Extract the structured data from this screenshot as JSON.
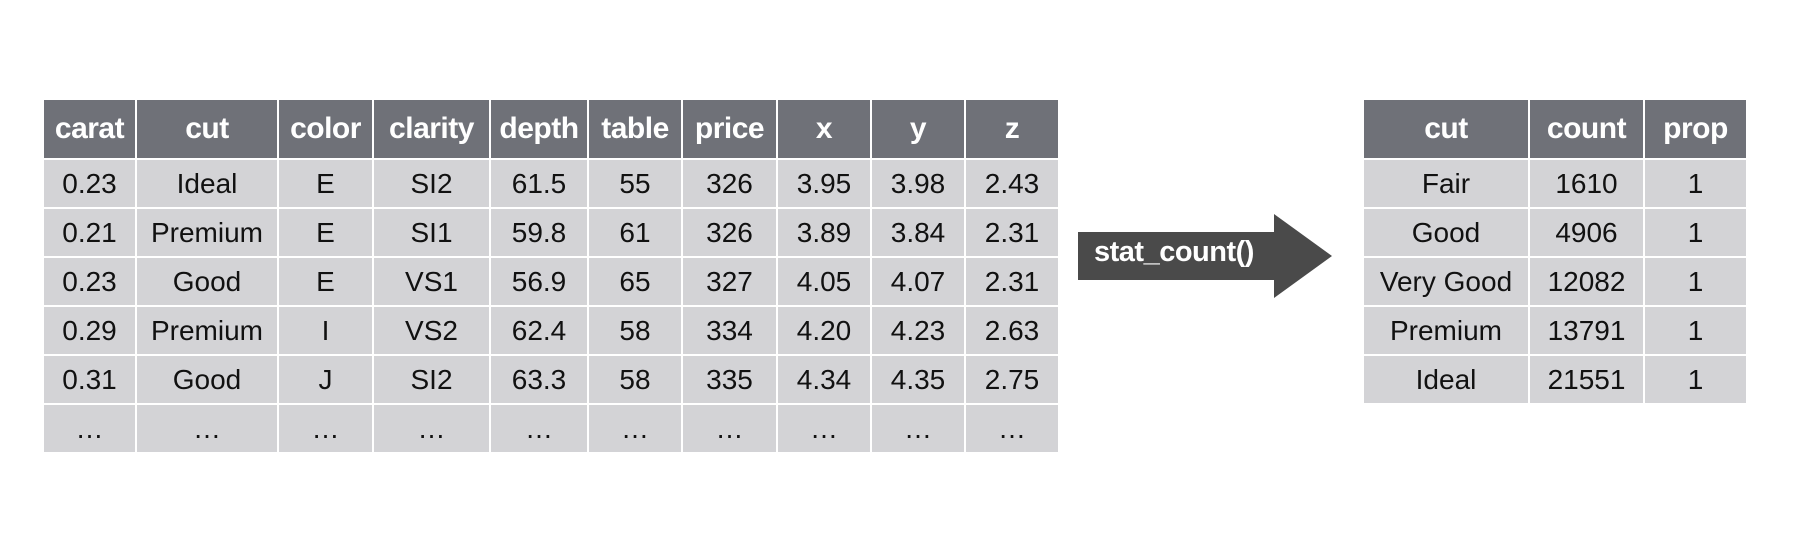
{
  "source_table": {
    "columns": [
      "carat",
      "cut",
      "color",
      "clarity",
      "depth",
      "table",
      "price",
      "x",
      "y",
      "z"
    ],
    "rows": [
      [
        "0.23",
        "Ideal",
        "E",
        "SI2",
        "61.5",
        "55",
        "326",
        "3.95",
        "3.98",
        "2.43"
      ],
      [
        "0.21",
        "Premium",
        "E",
        "SI1",
        "59.8",
        "61",
        "326",
        "3.89",
        "3.84",
        "2.31"
      ],
      [
        "0.23",
        "Good",
        "E",
        "VS1",
        "56.9",
        "65",
        "327",
        "4.05",
        "4.07",
        "2.31"
      ],
      [
        "0.29",
        "Premium",
        "I",
        "VS2",
        "62.4",
        "58",
        "334",
        "4.20",
        "4.23",
        "2.63"
      ],
      [
        "0.31",
        "Good",
        "J",
        "SI2",
        "63.3",
        "58",
        "335",
        "4.34",
        "4.35",
        "2.75"
      ],
      [
        "…",
        "…",
        "…",
        "…",
        "…",
        "…",
        "…",
        "…",
        "…",
        "…"
      ]
    ]
  },
  "transform": {
    "label": "stat_count()",
    "color": "#4a4a4a"
  },
  "result_table": {
    "columns": [
      "cut",
      "count",
      "prop"
    ],
    "rows": [
      [
        "Fair",
        "1610",
        "1"
      ],
      [
        "Good",
        "4906",
        "1"
      ],
      [
        "Very Good",
        "12082",
        "1"
      ],
      [
        "Premium",
        "13791",
        "1"
      ],
      [
        "Ideal",
        "21551",
        "1"
      ]
    ]
  },
  "colors": {
    "header_bg": "#6f7178",
    "cell_bg": "#d3d3d6"
  }
}
